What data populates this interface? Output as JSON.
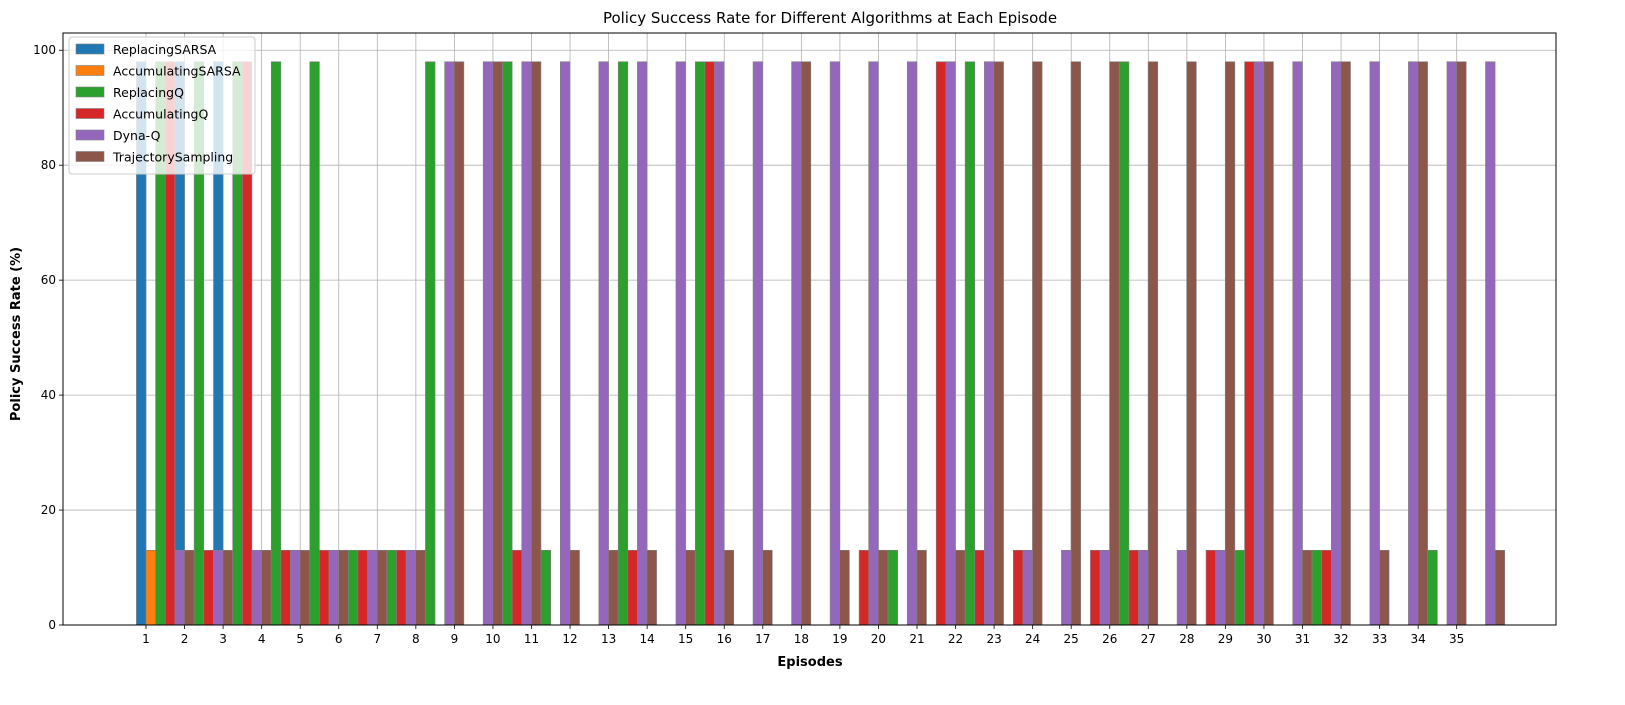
{
  "chart_data": {
    "type": "bar",
    "title": "Policy Success Rate for Different Algorithms at Each Episode",
    "xlabel": "Episodes",
    "ylabel": "Policy Success Rate (%)",
    "ylim": [
      0,
      103
    ],
    "yticks": [
      0,
      20,
      40,
      60,
      80,
      100
    ],
    "grid": true,
    "legend_position": "top-left",
    "categories": [
      "1",
      "2",
      "3",
      "4",
      "5",
      "6",
      "7",
      "8",
      "9",
      "10",
      "11",
      "12",
      "13",
      "14",
      "15",
      "16",
      "17",
      "18",
      "19",
      "20",
      "21",
      "22",
      "23",
      "24",
      "25",
      "26",
      "27",
      "28",
      "29",
      "30",
      "31",
      "32",
      "33",
      "34",
      "35"
    ],
    "series": [
      {
        "name": "ReplacingSARSA",
        "color": "#1f77b4",
        "values": [
          98,
          98,
          98,
          13,
          13,
          13,
          13,
          0,
          0,
          0,
          0,
          0,
          0,
          0,
          0,
          0,
          0,
          0,
          0,
          0,
          0,
          0,
          0,
          0,
          0,
          0,
          0,
          0,
          0,
          0,
          0,
          0,
          0,
          0,
          0
        ]
      },
      {
        "name": "AccumulatingSARSA",
        "color": "#ff7f0e",
        "values": [
          13,
          13,
          13,
          0,
          0,
          0,
          0,
          0,
          0,
          0,
          0,
          0,
          0,
          0,
          0,
          0,
          0,
          0,
          0,
          0,
          0,
          0,
          0,
          0,
          0,
          0,
          0,
          0,
          0,
          0,
          0,
          0,
          0,
          0,
          0
        ]
      },
      {
        "name": "ReplacingQ",
        "color": "#2ca02c",
        "values": [
          98,
          98,
          98,
          98,
          98,
          13,
          13,
          98,
          0,
          98,
          13,
          0,
          98,
          0,
          98,
          0,
          0,
          0,
          0,
          13,
          0,
          98,
          0,
          0,
          0,
          98,
          0,
          0,
          13,
          0,
          13,
          0,
          0,
          13,
          0
        ]
      },
      {
        "name": "AccumulatingQ",
        "color": "#d62728",
        "values": [
          98,
          13,
          98,
          13,
          13,
          13,
          13,
          0,
          0,
          13,
          0,
          0,
          13,
          0,
          98,
          0,
          0,
          0,
          13,
          0,
          98,
          13,
          13,
          0,
          13,
          13,
          0,
          13,
          98,
          0,
          13,
          0,
          0,
          0,
          0
        ]
      },
      {
        "name": "Dyna-Q",
        "color": "#9467bd",
        "values": [
          13,
          13,
          13,
          13,
          13,
          13,
          13,
          98,
          98,
          98,
          98,
          98,
          98,
          98,
          98,
          98,
          98,
          98,
          98,
          98,
          98,
          98,
          13,
          13,
          13,
          13,
          13,
          13,
          98,
          98,
          98,
          98,
          98,
          98,
          98
        ]
      },
      {
        "name": "TrajectorySampling",
        "color": "#8c564b",
        "values": [
          13,
          13,
          13,
          13,
          13,
          13,
          13,
          98,
          98,
          98,
          13,
          13,
          13,
          13,
          13,
          13,
          98,
          13,
          13,
          13,
          13,
          98,
          98,
          98,
          98,
          98,
          98,
          98,
          98,
          13,
          98,
          13,
          98,
          98,
          13
        ]
      }
    ]
  }
}
